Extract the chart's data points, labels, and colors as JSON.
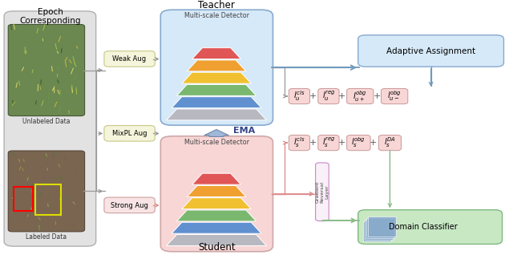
{
  "epoch_label": "Epoch\nCorresponding",
  "unlabeled_label": "Unlabeled Data",
  "labeled_label": "Labeled Data",
  "teacher_label": "Teacher",
  "student_label": "Student",
  "detector_label": "Multi-scale Detector",
  "weak_aug": "Weak Aug",
  "mixpl_aug": "MixPL Aug",
  "strong_aug": "Strong Aug",
  "adaptive_label": "Adaptive Assignment",
  "domain_label": "Domain Classifier",
  "ema_label": "EMA",
  "gradient_label": "Gradient\nReversal\nLayer",
  "pyramid_colors_top_to_bot": [
    "#e05555",
    "#f0a030",
    "#f0c030",
    "#7ab870",
    "#6090d0",
    "#b8b8c0"
  ],
  "teacher_bg": "#d6e9f8",
  "student_bg": "#f8d6d6",
  "epoch_bg": "#e2e2e2",
  "adaptive_bg": "#d6e9f8",
  "domain_bg": "#c8e8c4",
  "weak_aug_bg": "#f5f5dc",
  "mixpl_aug_bg": "#f5f5dc",
  "strong_aug_bg": "#f8e4e4",
  "loss_bg": "#f8d6d6",
  "arrow_gray": "#999999",
  "arrow_blue": "#7099bb",
  "arrow_pink": "#dd8888",
  "arrow_green": "#88bb88",
  "ema_arrow_color": "#a0b8d8"
}
